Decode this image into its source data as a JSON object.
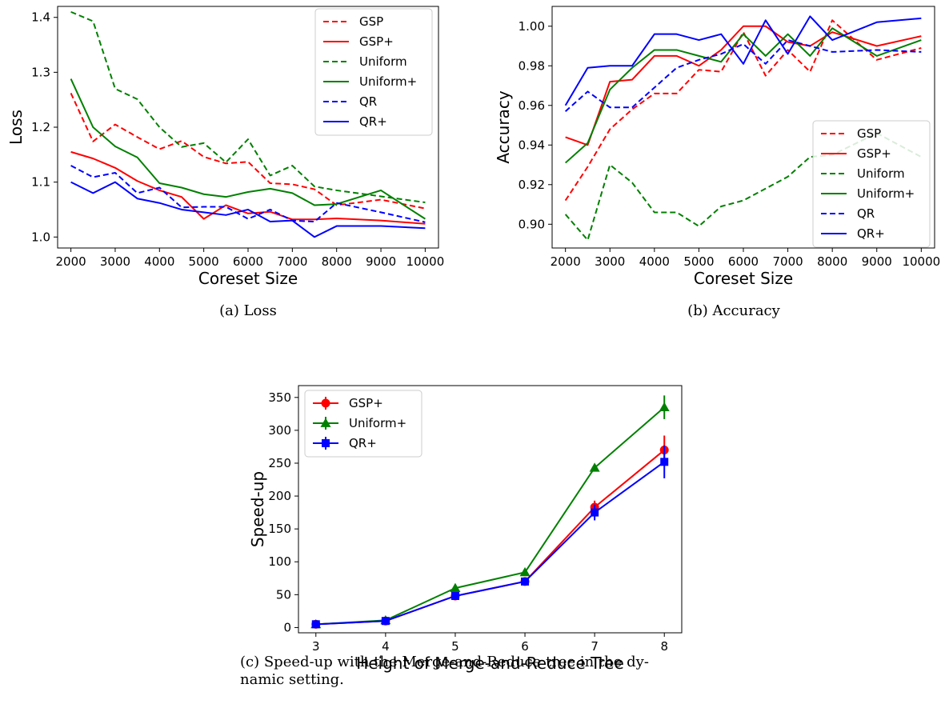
{
  "chart_data": [
    {
      "id": "loss",
      "type": "line",
      "caption": "(a) Loss",
      "xlabel": "Coreset Size",
      "ylabel": "Loss",
      "xlim": [
        1700,
        10300
      ],
      "ylim": [
        0.98,
        1.42
      ],
      "xticks": [
        2000,
        3000,
        4000,
        5000,
        6000,
        7000,
        8000,
        9000,
        10000
      ],
      "yticks": [
        1.0,
        1.1,
        1.2,
        1.3,
        1.4
      ],
      "ytick_labels": [
        "1.0",
        "1.1",
        "1.2",
        "1.3",
        "1.4"
      ],
      "legend_position": "top-right",
      "x": [
        2000,
        2500,
        3000,
        3500,
        4000,
        4500,
        5000,
        5500,
        6000,
        6500,
        7000,
        7500,
        8000,
        9000,
        10000
      ],
      "series": [
        {
          "name": "GSP",
          "color": "#ff0000",
          "dashed": true,
          "values": [
            1.262,
            1.174,
            1.205,
            1.182,
            1.16,
            1.175,
            1.146,
            1.134,
            1.137,
            1.098,
            1.096,
            1.087,
            1.058,
            1.068,
            1.052
          ]
        },
        {
          "name": "GSP+",
          "color": "#ff0000",
          "dashed": false,
          "values": [
            1.155,
            1.143,
            1.126,
            1.102,
            1.085,
            1.073,
            1.033,
            1.058,
            1.043,
            1.046,
            1.032,
            1.032,
            1.034,
            1.03,
            1.024
          ]
        },
        {
          "name": "Uniform",
          "color": "#008000",
          "dashed": true,
          "values": [
            1.41,
            1.393,
            1.27,
            1.251,
            1.2,
            1.164,
            1.171,
            1.136,
            1.178,
            1.112,
            1.13,
            1.092,
            1.085,
            1.074,
            1.063
          ]
        },
        {
          "name": "Uniform+",
          "color": "#008000",
          "dashed": false,
          "values": [
            1.288,
            1.2,
            1.165,
            1.145,
            1.098,
            1.09,
            1.078,
            1.073,
            1.082,
            1.088,
            1.08,
            1.058,
            1.06,
            1.085,
            1.033
          ]
        },
        {
          "name": "QR",
          "color": "#0000ff",
          "dashed": true,
          "values": [
            1.13,
            1.109,
            1.117,
            1.08,
            1.09,
            1.054,
            1.055,
            1.055,
            1.033,
            1.05,
            1.03,
            1.028,
            1.062,
            1.045,
            1.027
          ]
        },
        {
          "name": "QR+",
          "color": "#0000ff",
          "dashed": false,
          "values": [
            1.1,
            1.08,
            1.1,
            1.07,
            1.062,
            1.05,
            1.045,
            1.04,
            1.05,
            1.028,
            1.03,
            1.0,
            1.02,
            1.02,
            1.016
          ]
        }
      ]
    },
    {
      "id": "accuracy",
      "type": "line",
      "caption": "(b) Accuracy",
      "xlabel": "Coreset Size",
      "ylabel": "Accuracy",
      "xlim": [
        1700,
        10300
      ],
      "ylim": [
        0.888,
        1.01
      ],
      "xticks": [
        2000,
        3000,
        4000,
        5000,
        6000,
        7000,
        8000,
        9000,
        10000
      ],
      "yticks": [
        0.9,
        0.92,
        0.94,
        0.96,
        0.98,
        1.0
      ],
      "ytick_labels": [
        "0.90",
        "0.92",
        "0.94",
        "0.96",
        "0.98",
        "1.00"
      ],
      "legend_position": "bottom-right",
      "x": [
        2000,
        2500,
        3000,
        3500,
        4000,
        4500,
        5000,
        5500,
        6000,
        6500,
        7000,
        7500,
        8000,
        9000,
        10000
      ],
      "series": [
        {
          "name": "GSP",
          "color": "#ff0000",
          "dashed": true,
          "values": [
            0.912,
            0.929,
            0.948,
            0.958,
            0.966,
            0.966,
            0.978,
            0.977,
            0.997,
            0.975,
            0.988,
            0.977,
            1.003,
            0.983,
            0.989
          ]
        },
        {
          "name": "GSP+",
          "color": "#ff0000",
          "dashed": false,
          "values": [
            0.944,
            0.94,
            0.972,
            0.973,
            0.985,
            0.985,
            0.98,
            0.988,
            1.0,
            1.0,
            0.992,
            0.99,
            0.997,
            0.99,
            0.995
          ]
        },
        {
          "name": "Uniform",
          "color": "#008000",
          "dashed": true,
          "values": [
            0.905,
            0.892,
            0.93,
            0.921,
            0.906,
            0.906,
            0.899,
            0.909,
            0.912,
            0.918,
            0.924,
            0.934,
            0.935,
            0.946,
            0.934
          ]
        },
        {
          "name": "Uniform+",
          "color": "#008000",
          "dashed": false,
          "values": [
            0.931,
            0.941,
            0.968,
            0.979,
            0.988,
            0.988,
            0.985,
            0.982,
            0.996,
            0.985,
            0.996,
            0.985,
            0.999,
            0.985,
            0.993
          ]
        },
        {
          "name": "QR",
          "color": "#0000ff",
          "dashed": true,
          "values": [
            0.957,
            0.967,
            0.959,
            0.959,
            0.969,
            0.979,
            0.983,
            0.986,
            0.991,
            0.981,
            0.993,
            0.99,
            0.987,
            0.988,
            0.987
          ]
        },
        {
          "name": "QR+",
          "color": "#0000ff",
          "dashed": false,
          "values": [
            0.96,
            0.979,
            0.98,
            0.98,
            0.996,
            0.996,
            0.993,
            0.996,
            0.981,
            1.003,
            0.986,
            1.005,
            0.993,
            1.002,
            1.004
          ]
        }
      ]
    },
    {
      "id": "speedup",
      "type": "line",
      "caption_lines": [
        "(c) Speed-up with the Merge-and-Reduce tree in the dy-",
        "namic setting."
      ],
      "xlabel": "Height of Merge-and-Reduce Tree",
      "ylabel": "Speed-up",
      "xlim": [
        2.75,
        8.25
      ],
      "ylim": [
        -8,
        368
      ],
      "xticks": [
        3,
        4,
        5,
        6,
        7,
        8
      ],
      "yticks": [
        0,
        50,
        100,
        150,
        200,
        250,
        300,
        350
      ],
      "ytick_labels": [
        "0",
        "50",
        "100",
        "150",
        "200",
        "250",
        "300",
        "350"
      ],
      "legend_position": "top-left",
      "x": [
        3,
        4,
        5,
        6,
        7,
        8
      ],
      "series": [
        {
          "name": "GSP+",
          "color": "#ff0000",
          "marker": "circle",
          "values": [
            5,
            10,
            48,
            70,
            183,
            270
          ],
          "errors": [
            2,
            2,
            3,
            3,
            10,
            22
          ]
        },
        {
          "name": "Uniform+",
          "color": "#008000",
          "marker": "triangle",
          "values": [
            5,
            11,
            60,
            84,
            243,
            335
          ],
          "errors": [
            2,
            2,
            3,
            3,
            4,
            18
          ]
        },
        {
          "name": "QR+",
          "color": "#0000ff",
          "marker": "square",
          "values": [
            5,
            10,
            48,
            70,
            175,
            252
          ],
          "errors": [
            2,
            2,
            3,
            3,
            12,
            25
          ]
        }
      ]
    }
  ]
}
